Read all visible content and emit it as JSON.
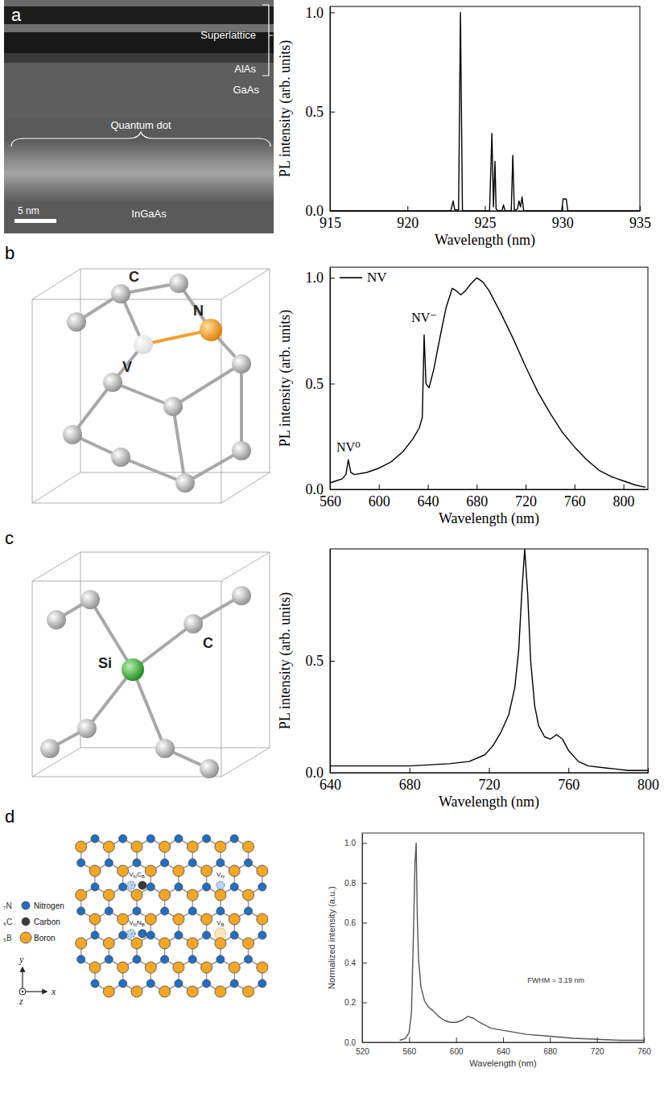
{
  "chart_data": [
    {
      "type": "line",
      "xlabel": "Wavelength (nm)",
      "ylabel": "PL intensity (arb. units)",
      "x": [
        915,
        922.8,
        922.95,
        923.05,
        923.15,
        923.3,
        923.42,
        923.55,
        925.3,
        925.45,
        925.55,
        925.65,
        925.72,
        925.85,
        926.1,
        926.2,
        926.3,
        926.7,
        926.8,
        926.9,
        927.1,
        927.2,
        927.3,
        927.4,
        927.5,
        929.95,
        930.05,
        930.15,
        930.25,
        930.35,
        935
      ],
      "values": [
        0,
        0,
        0.05,
        0.005,
        0.005,
        0.005,
        1.0,
        0,
        0,
        0.39,
        0.02,
        0.25,
        0.01,
        0,
        0,
        0.03,
        0,
        0,
        0.28,
        0,
        0.01,
        0.05,
        0.02,
        0.07,
        0,
        0,
        0.06,
        0.06,
        0.06,
        0,
        0
      ],
      "color": "#000000",
      "xlim": [
        915,
        935
      ],
      "xticks": [
        915,
        920,
        925,
        930,
        935
      ],
      "ylim": [
        0,
        1.03
      ],
      "yticks": [
        {
          "value": 0,
          "label": "0.0"
        },
        {
          "value": 0.5,
          "label": "0.5"
        },
        {
          "value": 1,
          "label": "1.0"
        }
      ]
    },
    {
      "type": "line",
      "xlabel": "Wavelength (nm)",
      "ylabel": "PL intensity (arb. units)",
      "x": [
        560,
        565,
        570,
        573,
        575,
        577,
        580,
        590,
        600,
        610,
        620,
        628,
        633,
        635.5,
        637,
        638.5,
        641,
        645,
        650,
        655,
        660,
        663,
        667,
        671,
        675,
        680,
        685,
        690,
        700,
        710,
        720,
        730,
        740,
        750,
        760,
        770,
        780,
        790,
        800,
        810,
        818
      ],
      "series": [
        {
          "name": "NV",
          "color": "#000000",
          "values": [
            0.03,
            0.04,
            0.05,
            0.07,
            0.14,
            0.08,
            0.07,
            0.08,
            0.1,
            0.13,
            0.18,
            0.24,
            0.29,
            0.34,
            0.73,
            0.5,
            0.48,
            0.57,
            0.72,
            0.86,
            0.95,
            0.94,
            0.92,
            0.94,
            0.97,
            1.0,
            0.98,
            0.94,
            0.83,
            0.71,
            0.58,
            0.46,
            0.36,
            0.27,
            0.2,
            0.14,
            0.09,
            0.06,
            0.04,
            0.02,
            0.01
          ]
        }
      ],
      "legend": "upper left",
      "annotations": [
        {
          "text": "NV⁰",
          "x": 575,
          "y": 0.18
        },
        {
          "text": "NV⁻",
          "x": 637,
          "y": 0.79
        }
      ],
      "xlim": [
        560,
        820
      ],
      "xticks": [
        560,
        600,
        640,
        680,
        720,
        760,
        800
      ],
      "ylim": [
        0,
        1.05
      ],
      "yticks": [
        {
          "value": 0,
          "label": "0.0"
        },
        {
          "value": 0.5,
          "label": "0.5"
        },
        {
          "value": 1,
          "label": "1.0"
        }
      ]
    },
    {
      "type": "line",
      "xlabel": "Wavelength (nm)",
      "ylabel": "PL intensity (arb. units)",
      "x": [
        640,
        660,
        680,
        700,
        710,
        718,
        722,
        726,
        730,
        733,
        735,
        736.5,
        738,
        739.5,
        741,
        743,
        745,
        748,
        751,
        754,
        757,
        760,
        765,
        770,
        780,
        790,
        800
      ],
      "values": [
        0.03,
        0.03,
        0.03,
        0.04,
        0.05,
        0.08,
        0.12,
        0.18,
        0.26,
        0.38,
        0.55,
        0.8,
        1.0,
        0.8,
        0.5,
        0.3,
        0.21,
        0.16,
        0.15,
        0.17,
        0.15,
        0.1,
        0.05,
        0.03,
        0.02,
        0.01,
        0.01
      ],
      "color": "#000000",
      "xlim": [
        640,
        800
      ],
      "xticks": [
        640,
        680,
        720,
        760,
        800
      ],
      "ylim": [
        0,
        1.0
      ],
      "yticks": [
        {
          "value": 0,
          "label": "0.0"
        },
        {
          "value": 0.5,
          "label": "0.5"
        }
      ]
    },
    {
      "type": "line",
      "xlabel": "Wavelength (nm)",
      "ylabel": "Normalized intensity (a.u.)",
      "x": [
        552,
        557,
        560,
        562,
        563.5,
        565,
        566,
        567,
        568,
        570,
        573,
        576,
        580,
        585,
        590,
        595,
        600,
        605,
        610,
        615,
        620,
        630,
        640,
        650,
        660,
        680,
        700,
        720,
        740,
        760
      ],
      "values": [
        0.01,
        0.02,
        0.05,
        0.15,
        0.5,
        0.9,
        1.0,
        0.62,
        0.42,
        0.28,
        0.21,
        0.18,
        0.16,
        0.13,
        0.11,
        0.1,
        0.1,
        0.11,
        0.13,
        0.12,
        0.1,
        0.07,
        0.06,
        0.05,
        0.04,
        0.03,
        0.02,
        0.015,
        0.01,
        0.01
      ],
      "color": "#555555",
      "annotations": [
        {
          "text": "FWHM = 3.19 nm",
          "x": 685,
          "y": 0.3
        }
      ],
      "xlim": [
        520,
        760
      ],
      "xticks": [
        520,
        560,
        600,
        640,
        680,
        720,
        760
      ],
      "ylim": [
        0,
        1.05
      ],
      "yticks": [
        {
          "value": 0,
          "label": "0.0"
        },
        {
          "value": 0.2,
          "label": "0.2"
        },
        {
          "value": 0.4,
          "label": "0.4"
        },
        {
          "value": 0.6,
          "label": "0.6"
        },
        {
          "value": 0.8,
          "label": "0.8"
        },
        {
          "value": 1,
          "label": "1.0"
        }
      ]
    }
  ],
  "diagrams": [
    {
      "letter": "a",
      "labels": {
        "superlattice": "Superlattice",
        "alas": "AlAs",
        "gaas": "GaAs",
        "dot": "Quantum dot",
        "ingaas": "InGaAs"
      },
      "scale_bar": "5 nm"
    },
    {
      "letter": "b",
      "labels": {
        "carbon": "C",
        "vacancy": "V",
        "nitrogen": "N"
      }
    },
    {
      "letter": "c",
      "labels": {
        "silicon": "Si",
        "carbon": "C"
      }
    },
    {
      "letter": "d",
      "elements": [
        {
          "symbol": "₇N",
          "name": "Nitrogen",
          "color": "#1f6fc4"
        },
        {
          "symbol": "₆C",
          "name": "Carbon",
          "color": "#3a3a3a"
        },
        {
          "symbol": "₅B",
          "name": "Boron",
          "color": "#f5a623"
        }
      ],
      "defects": [
        {
          "parts": [
            {
              "base": "V",
              "sub": "N"
            },
            {
              "base": "C",
              "sub": "B"
            }
          ]
        },
        {
          "parts": [
            {
              "base": "V",
              "sub": "N"
            }
          ]
        },
        {
          "parts": [
            {
              "base": "V",
              "sub": "N"
            },
            {
              "base": "N",
              "sub": "B"
            }
          ]
        },
        {
          "parts": [
            {
              "base": "V",
              "sub": "B"
            }
          ]
        }
      ],
      "axes": {
        "x": "x",
        "y": "y",
        "z": "z"
      }
    }
  ]
}
